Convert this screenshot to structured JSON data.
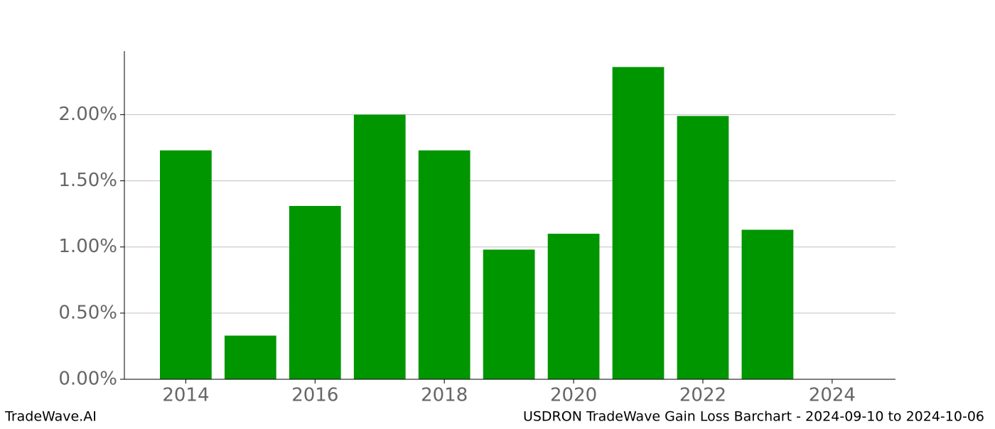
{
  "chart_data": {
    "type": "bar",
    "x": [
      2014,
      2015,
      2016,
      2017,
      2018,
      2019,
      2020,
      2021,
      2022,
      2023
    ],
    "values": [
      1.73,
      0.33,
      1.31,
      2.0,
      1.73,
      0.98,
      1.1,
      2.36,
      1.99,
      1.13
    ],
    "color": "#009600",
    "xlim": [
      2013.05,
      2024.98
    ],
    "xticks": [
      2014,
      2016,
      2018,
      2020,
      2022,
      2024
    ],
    "ylim": [
      0,
      2.48
    ],
    "yticks": [
      {
        "value": 0,
        "label": "0.00%"
      },
      {
        "value": 0.5,
        "label": "0.50%"
      },
      {
        "value": 1,
        "label": "1.00%"
      },
      {
        "value": 1.5,
        "label": "1.50%"
      },
      {
        "value": 2,
        "label": "2.00%"
      }
    ],
    "grid": true
  },
  "footer": {
    "left": "TradeWave.AI",
    "right": "USDRON TradeWave Gain Loss Barchart - 2024-09-10 to 2024-10-06"
  }
}
